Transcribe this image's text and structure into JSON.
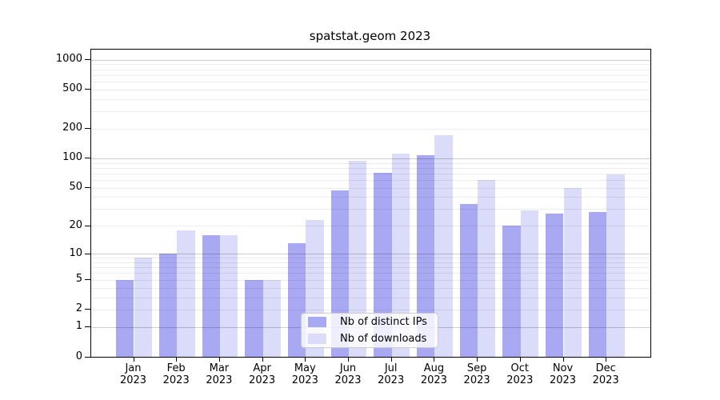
{
  "chart_data": {
    "type": "bar",
    "title": "spatstat.geom 2023",
    "categories": [
      "Jan 2023",
      "Feb 2023",
      "Mar 2023",
      "Apr 2023",
      "May 2023",
      "Jun 2023",
      "Jul 2023",
      "Aug 2023",
      "Sep 2023",
      "Oct 2023",
      "Nov 2023",
      "Dec 2023"
    ],
    "series": [
      {
        "name": "Nb of distinct IPs",
        "color": "#a9a9f3",
        "values": [
          5,
          10,
          16,
          5,
          13,
          47,
          71,
          108,
          34,
          20,
          27,
          28
        ]
      },
      {
        "name": "Nb of downloads",
        "color": "#dbdbfa",
        "values": [
          9,
          18,
          16,
          5,
          23,
          94,
          112,
          172,
          60,
          29,
          50,
          68
        ]
      }
    ],
    "yscale": "log10(1+x)",
    "yticks": [
      0,
      1,
      2,
      5,
      10,
      20,
      50,
      100,
      200,
      500,
      1000
    ],
    "ylim": [
      0,
      1200
    ],
    "xlabel": "",
    "ylabel": "",
    "grid": true,
    "legend_position": "lower center"
  },
  "colors": {
    "grid_minor": "#ececec",
    "grid_major": "#c9c9c9",
    "axis": "#000000",
    "legend_border": "#cccccc",
    "background": "#ffffff"
  }
}
